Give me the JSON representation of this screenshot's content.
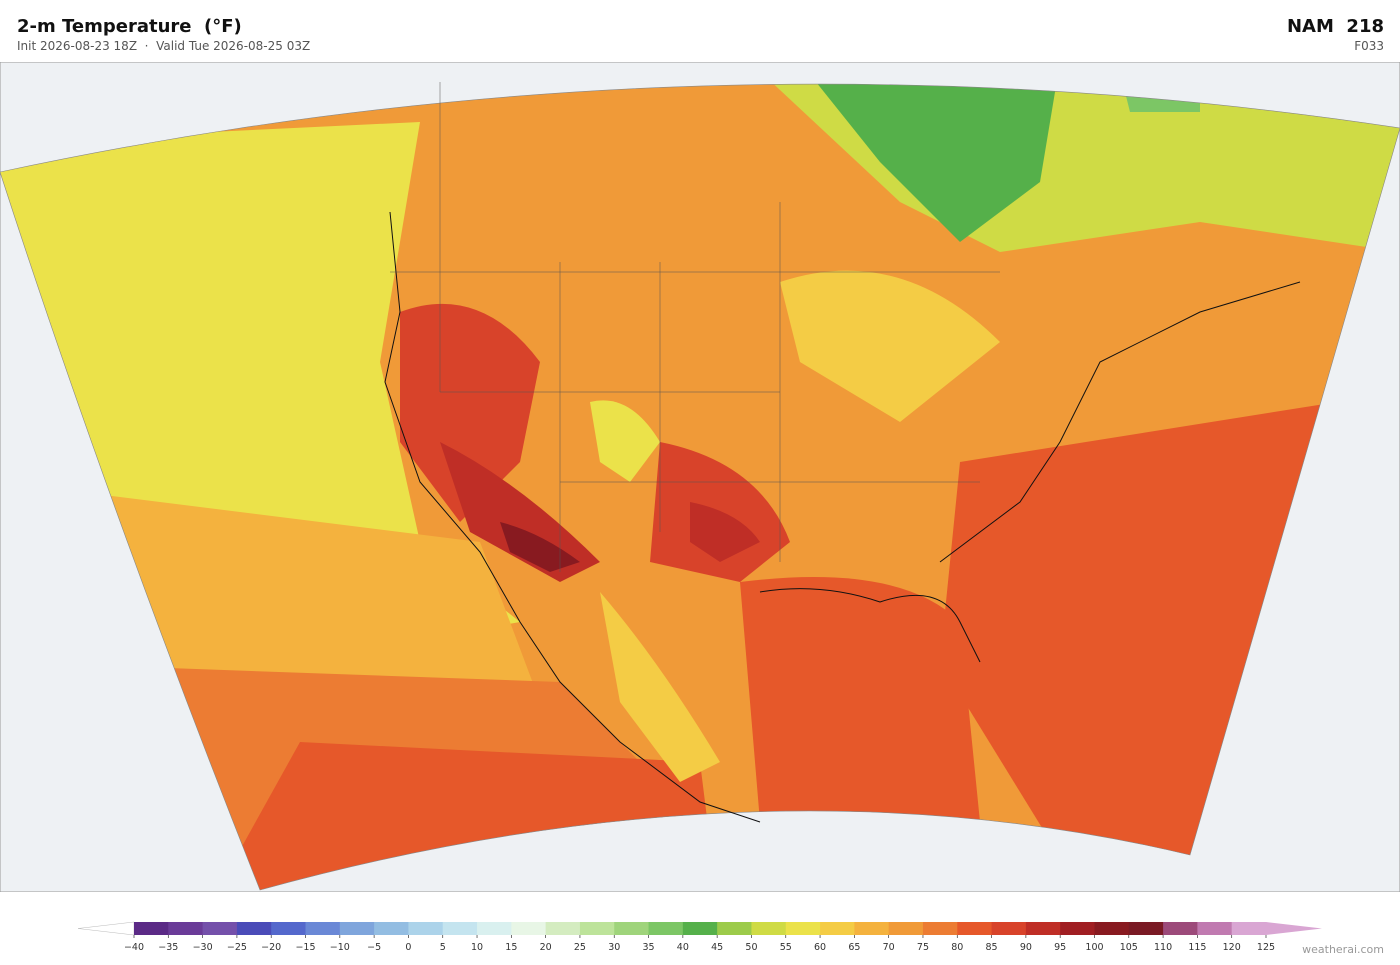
{
  "header": {
    "title": "2-m Temperature  (°F)",
    "subtitle": "Init 2026-08-23 18Z  ·  Valid Tue 2026-08-25 03Z",
    "model": "NAM  218",
    "forecast_hour": "F033"
  },
  "colorbar": {
    "ticks": [
      {
        "value": -40,
        "label": "−40"
      },
      {
        "value": -35,
        "label": "−35"
      },
      {
        "value": -30,
        "label": "−30"
      },
      {
        "value": -25,
        "label": "−25"
      },
      {
        "value": -20,
        "label": "−20"
      },
      {
        "value": -15,
        "label": "−15"
      },
      {
        "value": -10,
        "label": "−10"
      },
      {
        "value": -5,
        "label": "−5"
      },
      0,
      5,
      10,
      15,
      20,
      25,
      30,
      35,
      40,
      45,
      50,
      55,
      60,
      65,
      70,
      75,
      80,
      85,
      90,
      95,
      100,
      105,
      110,
      115,
      120,
      125
    ],
    "colors": [
      "#5b2a86",
      "#6a3b98",
      "#7450aa",
      "#4a4bb8",
      "#5468cc",
      "#6a88d6",
      "#7fa5dc",
      "#93bde2",
      "#acd3ea",
      "#c4e4ef",
      "#d9f0ef",
      "#e8f6e6",
      "#d4ecc0",
      "#bde39a",
      "#9fd47b",
      "#7cc665",
      "#55b04a",
      "#9ccb4a",
      "#cfdb45",
      "#ebe24a",
      "#f4cc45",
      "#f4b23e",
      "#f09a38",
      "#ec7c33",
      "#e6582a",
      "#d8432a",
      "#bf2e26",
      "#a01e22",
      "#881a20",
      "#7a1a24",
      "#9c4a7a",
      "#c07ab0",
      "#d9a6d3"
    ],
    "under_color": "#ffffff",
    "over_color": "#d9a6d3"
  },
  "watermark": "weatherai.com"
}
